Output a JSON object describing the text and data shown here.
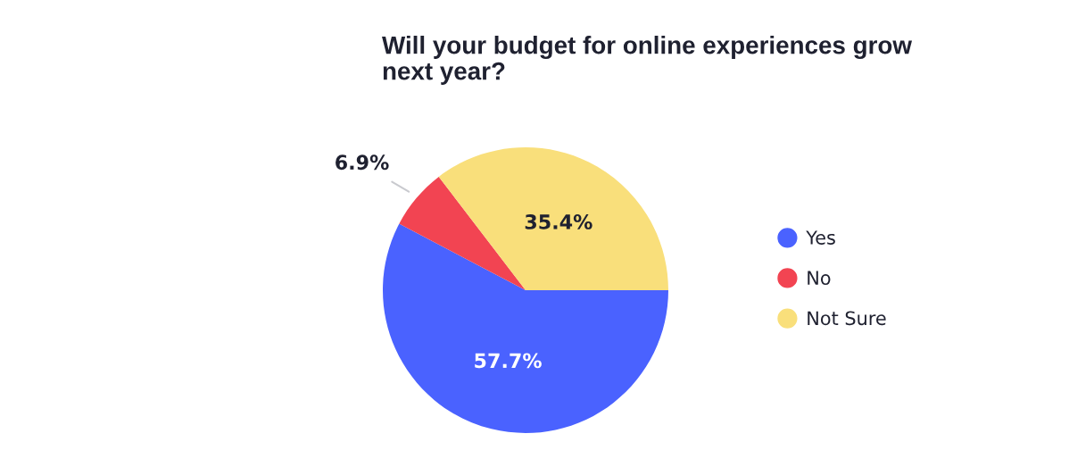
{
  "chart_data": {
    "type": "pie",
    "title": "Will your budget for online experiences grow next year?",
    "categories": [
      "Yes",
      "No",
      "Not Sure"
    ],
    "values": [
      57.7,
      6.9,
      35.4
    ],
    "colors": [
      "#4a62ff",
      "#f24452",
      "#f9df7b"
    ],
    "value_labels": [
      "57.7%",
      "6.9%",
      "35.4%"
    ],
    "legend": "right"
  }
}
